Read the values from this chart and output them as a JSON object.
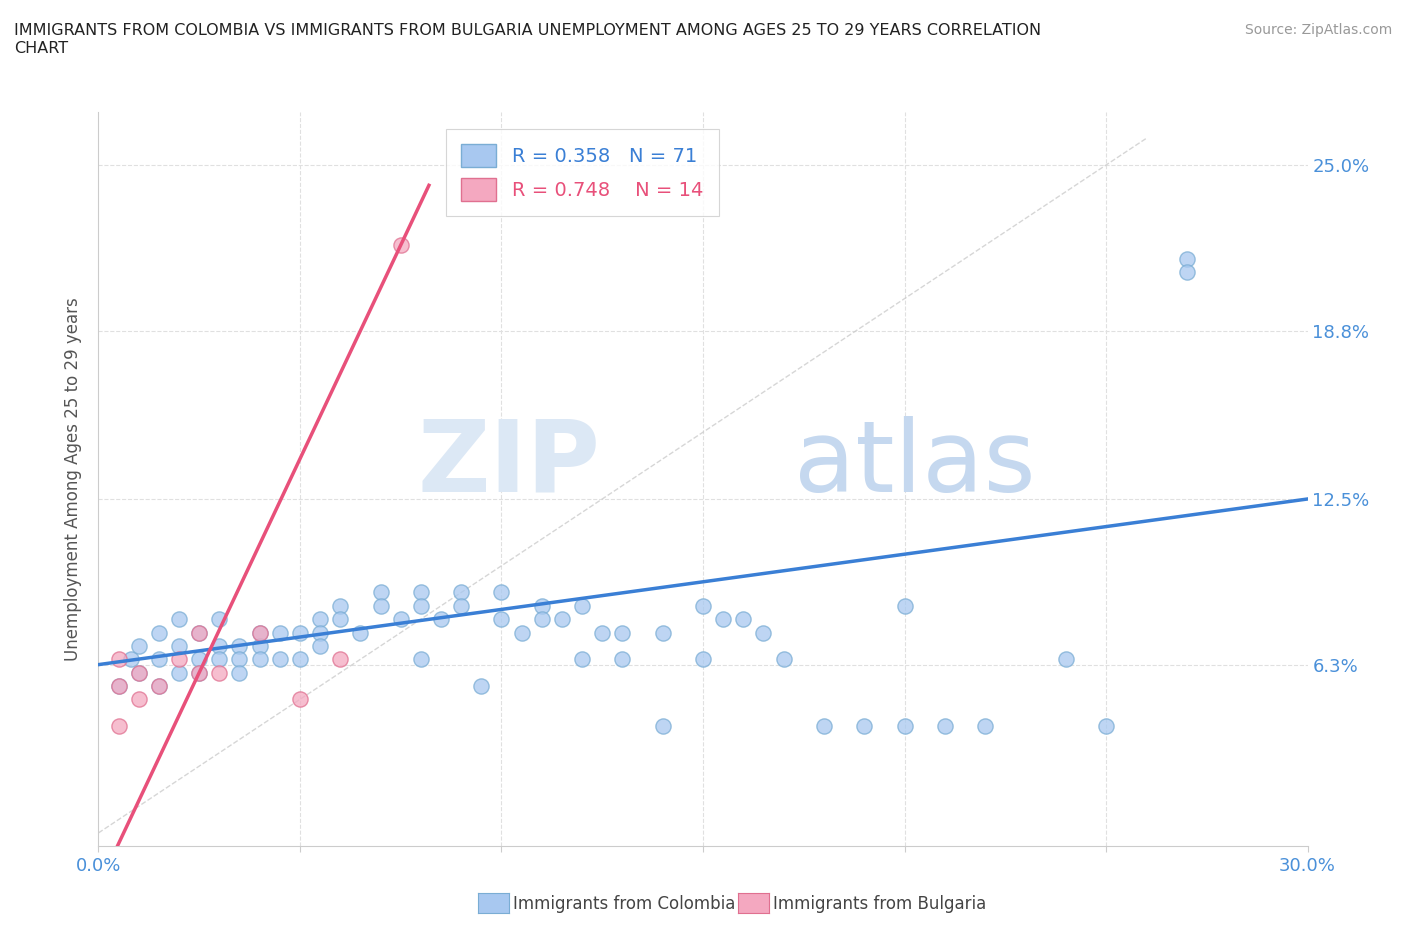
{
  "title": "IMMIGRANTS FROM COLOMBIA VS IMMIGRANTS FROM BULGARIA UNEMPLOYMENT AMONG AGES 25 TO 29 YEARS CORRELATION\nCHART",
  "source_text": "Source: ZipAtlas.com",
  "ylabel": "Unemployment Among Ages 25 to 29 years",
  "xlim": [
    0.0,
    0.3
  ],
  "ylim": [
    -0.005,
    0.27
  ],
  "colombia_color": "#a8c8f0",
  "colombia_edge_color": "#7aadd4",
  "bulgaria_color": "#f4a8c0",
  "bulgaria_edge_color": "#e07090",
  "colombia_line_color": "#3a7fd5",
  "bulgaria_line_color": "#e8507a",
  "r_colombia": 0.358,
  "n_colombia": 71,
  "r_bulgaria": 0.748,
  "n_bulgaria": 14,
  "legend_label_colombia": "Immigrants from Colombia",
  "legend_label_bulgaria": "Immigrants from Bulgaria",
  "watermark_zip": "ZIP",
  "watermark_atlas": "atlas",
  "background_color": "#ffffff",
  "colombia_x": [
    0.005,
    0.008,
    0.01,
    0.01,
    0.015,
    0.015,
    0.015,
    0.02,
    0.02,
    0.02,
    0.025,
    0.025,
    0.025,
    0.03,
    0.03,
    0.03,
    0.035,
    0.035,
    0.035,
    0.04,
    0.04,
    0.04,
    0.045,
    0.045,
    0.05,
    0.05,
    0.055,
    0.055,
    0.055,
    0.06,
    0.06,
    0.065,
    0.07,
    0.07,
    0.075,
    0.08,
    0.08,
    0.08,
    0.085,
    0.09,
    0.09,
    0.095,
    0.1,
    0.1,
    0.105,
    0.11,
    0.11,
    0.115,
    0.12,
    0.12,
    0.125,
    0.13,
    0.13,
    0.14,
    0.14,
    0.15,
    0.15,
    0.155,
    0.16,
    0.165,
    0.17,
    0.18,
    0.19,
    0.2,
    0.2,
    0.21,
    0.22,
    0.24,
    0.25,
    0.27,
    0.27
  ],
  "colombia_y": [
    0.055,
    0.065,
    0.07,
    0.06,
    0.075,
    0.065,
    0.055,
    0.07,
    0.06,
    0.08,
    0.075,
    0.065,
    0.06,
    0.08,
    0.07,
    0.065,
    0.07,
    0.065,
    0.06,
    0.075,
    0.07,
    0.065,
    0.075,
    0.065,
    0.075,
    0.065,
    0.08,
    0.075,
    0.07,
    0.085,
    0.08,
    0.075,
    0.09,
    0.085,
    0.08,
    0.09,
    0.085,
    0.065,
    0.08,
    0.09,
    0.085,
    0.055,
    0.09,
    0.08,
    0.075,
    0.085,
    0.08,
    0.08,
    0.085,
    0.065,
    0.075,
    0.075,
    0.065,
    0.075,
    0.04,
    0.085,
    0.065,
    0.08,
    0.08,
    0.075,
    0.065,
    0.04,
    0.04,
    0.04,
    0.085,
    0.04,
    0.04,
    0.065,
    0.04,
    0.215,
    0.21
  ],
  "bulgaria_x": [
    0.005,
    0.005,
    0.005,
    0.01,
    0.01,
    0.015,
    0.02,
    0.025,
    0.025,
    0.03,
    0.04,
    0.05,
    0.06,
    0.075
  ],
  "bulgaria_y": [
    0.04,
    0.055,
    0.065,
    0.05,
    0.06,
    0.055,
    0.065,
    0.06,
    0.075,
    0.06,
    0.075,
    0.05,
    0.065,
    0.22
  ]
}
